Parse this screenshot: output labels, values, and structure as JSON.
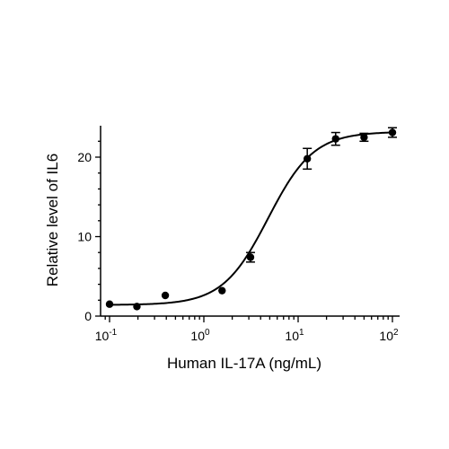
{
  "chart_data": {
    "type": "scatter",
    "title": "",
    "xlabel": "Human IL-17A (ng/mL)",
    "ylabel": "Relative level of IL6",
    "x_scale": "log",
    "xlim": [
      0.05,
      130
    ],
    "ylim": [
      0,
      24
    ],
    "x_ticks": [
      {
        "value": 0.1,
        "base": "10",
        "exp": "-1"
      },
      {
        "value": 1,
        "base": "10",
        "exp": "0"
      },
      {
        "value": 10,
        "base": "10",
        "exp": "1"
      },
      {
        "value": 100,
        "base": "10",
        "exp": "2"
      }
    ],
    "y_ticks": [
      {
        "value": 0,
        "label": "0"
      },
      {
        "value": 10,
        "label": "10"
      },
      {
        "value": 20,
        "label": "20"
      }
    ],
    "grid": false,
    "legend": "none",
    "series": [
      {
        "points": [
          {
            "x": 0.1,
            "y": 1.5,
            "err": 0.0
          },
          {
            "x": 0.195,
            "y": 1.2,
            "err": 0.0
          },
          {
            "x": 0.39,
            "y": 2.6,
            "err": 0.0
          },
          {
            "x": 1.56,
            "y": 3.2,
            "err": 0.0
          },
          {
            "x": 3.125,
            "y": 7.4,
            "err": 0.6
          },
          {
            "x": 12.5,
            "y": 19.8,
            "err": 1.3
          },
          {
            "x": 25,
            "y": 22.3,
            "err": 0.8
          },
          {
            "x": 50,
            "y": 22.5,
            "err": 0.5
          },
          {
            "x": 100,
            "y": 23.1,
            "err": 0.6
          }
        ],
        "fit": {
          "model": "4PL",
          "bottom": 1.4,
          "top": 23.2,
          "ec50": 4.8,
          "hill": 1.8
        }
      }
    ],
    "colors": {
      "marker": "#000000",
      "curve": "#000000"
    }
  }
}
